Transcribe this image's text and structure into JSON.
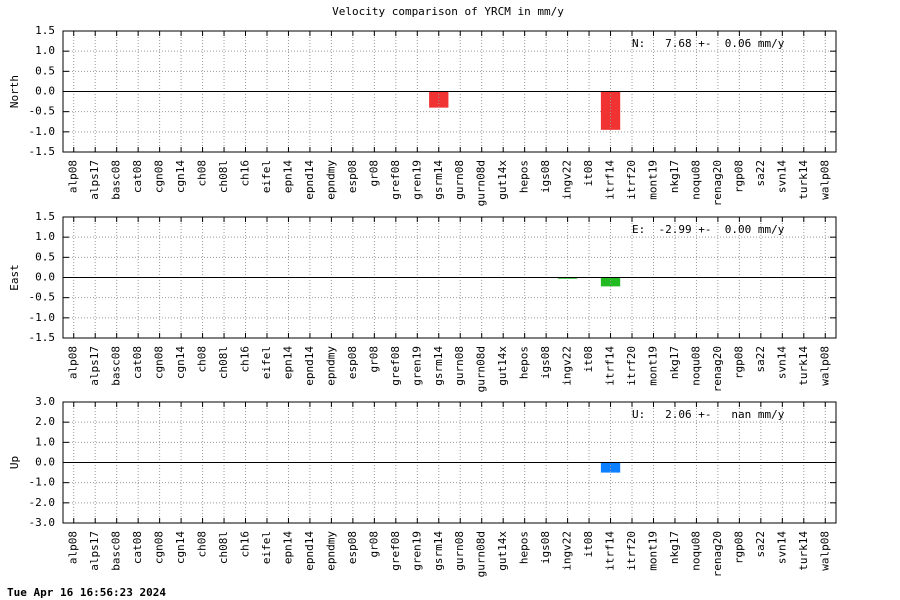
{
  "title": "Velocity comparison of YRCM in mm/y",
  "timestamp": "Tue Apr 16 16:56:23 2024",
  "chart_data": [
    {
      "type": "bar",
      "ylabel": "North",
      "annotation": "N:   7.68 +-  0.06 mm/y",
      "color": "#f03232",
      "grid": true,
      "categories": [
        "alp08",
        "alps17",
        "basc08",
        "cat08",
        "cgn08",
        "cgn14",
        "ch08",
        "ch08l",
        "ch16",
        "eifel",
        "epn14",
        "epnd14",
        "epndmy",
        "esp08",
        "gr08",
        "gref08",
        "gren19",
        "gsrm14",
        "gurn08",
        "gurn08d",
        "gut14x",
        "hepos",
        "igs08",
        "ingv22",
        "it08",
        "itrf14",
        "itrf20",
        "mont19",
        "nkg17",
        "noqu08",
        "renag20",
        "rgp08",
        "sa22",
        "svn14",
        "turk14",
        "walp08"
      ],
      "values": [
        0,
        0,
        0,
        0,
        0,
        0,
        0,
        0,
        0,
        0,
        0,
        0,
        0,
        0,
        0,
        0,
        0,
        -0.4,
        0,
        0,
        0,
        0,
        0,
        0,
        0,
        -0.95,
        0,
        0,
        0,
        0,
        0,
        0,
        0,
        0,
        0,
        0
      ],
      "ylim": [
        -1.5,
        1.5
      ],
      "yticks": [
        -1.5,
        {
          "value": -1,
          "label": "-1.0"
        },
        -0.5,
        {
          "value": 0,
          "label": "0.0"
        },
        0.5,
        {
          "value": 1,
          "label": "1.0"
        },
        1.5
      ]
    },
    {
      "type": "bar",
      "ylabel": "East",
      "annotation": "E:  -2.99 +-  0.00 mm/y",
      "color": "#22bb22",
      "grid": true,
      "categories": [
        "alp08",
        "alps17",
        "basc08",
        "cat08",
        "cgn08",
        "cgn14",
        "ch08",
        "ch08l",
        "ch16",
        "eifel",
        "epn14",
        "epnd14",
        "epndmy",
        "esp08",
        "gr08",
        "gref08",
        "gren19",
        "gsrm14",
        "gurn08",
        "gurn08d",
        "gut14x",
        "hepos",
        "igs08",
        "ingv22",
        "it08",
        "itrf14",
        "itrf20",
        "mont19",
        "nkg17",
        "noqu08",
        "renag20",
        "rgp08",
        "sa22",
        "svn14",
        "turk14",
        "walp08"
      ],
      "values": [
        0,
        0,
        0,
        0,
        0,
        0,
        0,
        0,
        0,
        0,
        0,
        0,
        0,
        0,
        0,
        0,
        0,
        0,
        0,
        0,
        0,
        0,
        0,
        -0.03,
        0,
        -0.22,
        0,
        0,
        0,
        0,
        0,
        0,
        0,
        0,
        0,
        0
      ],
      "ylim": [
        -1.5,
        1.5
      ],
      "yticks": [
        -1.5,
        {
          "value": -1,
          "label": "-1.0"
        },
        -0.5,
        {
          "value": 0,
          "label": "0.0"
        },
        0.5,
        {
          "value": 1,
          "label": "1.0"
        },
        1.5
      ]
    },
    {
      "type": "bar",
      "ylabel": "Up",
      "annotation": "U:   2.06 +-   nan mm/y",
      "color": "#0a7fff",
      "grid": true,
      "categories": [
        "alp08",
        "alps17",
        "basc08",
        "cat08",
        "cgn08",
        "cgn14",
        "ch08",
        "ch08l",
        "ch16",
        "eifel",
        "epn14",
        "epnd14",
        "epndmy",
        "esp08",
        "gr08",
        "gref08",
        "gren19",
        "gsrm14",
        "gurn08",
        "gurn08d",
        "gut14x",
        "hepos",
        "igs08",
        "ingv22",
        "it08",
        "itrf14",
        "itrf20",
        "mont19",
        "nkg17",
        "noqu08",
        "renag20",
        "rgp08",
        "sa22",
        "svn14",
        "turk14",
        "walp08"
      ],
      "values": [
        0,
        0,
        0,
        0,
        0,
        0,
        0,
        0,
        0,
        0,
        0,
        0,
        0,
        0,
        0,
        0,
        0,
        0,
        0,
        0,
        0,
        0,
        0,
        0,
        0,
        -0.5,
        0,
        0,
        0,
        0,
        0,
        0,
        0,
        0,
        0,
        0
      ],
      "ylim": [
        -3,
        3
      ],
      "yticks": [
        {
          "value": -3,
          "label": "-3.0"
        },
        {
          "value": -2,
          "label": "-2.0"
        },
        {
          "value": -1,
          "label": "-1.0"
        },
        {
          "value": 0,
          "label": "0.0"
        },
        {
          "value": 1,
          "label": "1.0"
        },
        {
          "value": 2,
          "label": "2.0"
        },
        {
          "value": 3,
          "label": "3.0"
        }
      ]
    }
  ]
}
